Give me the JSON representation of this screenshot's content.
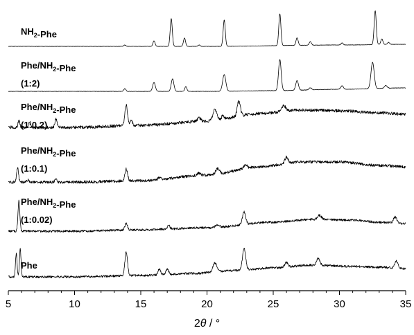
{
  "chart_data": {
    "type": "line",
    "title": "",
    "xlabel": "2θ / °",
    "ylabel": "",
    "xlim": [
      5,
      35
    ],
    "xticks": [
      5,
      10,
      15,
      20,
      25,
      30,
      35
    ],
    "y_axis_shown": false,
    "grid": false,
    "legend": "none (series labelled inline, top-left of each trace)",
    "series": [
      {
        "name": "NH2-Phe",
        "label_lines": [
          "NH2-Phe"
        ],
        "color": "#000000",
        "noise": 0.25,
        "background": [
          [
            5,
            0
          ],
          [
            10,
            0
          ],
          [
            20,
            0
          ],
          [
            30,
            2
          ],
          [
            35,
            3
          ]
        ],
        "peaks": [
          [
            13.8,
            2,
            0.08
          ],
          [
            16.0,
            8,
            0.08
          ],
          [
            17.3,
            40,
            0.08
          ],
          [
            18.3,
            12,
            0.08
          ],
          [
            19.4,
            2,
            0.08
          ],
          [
            21.3,
            38,
            0.08
          ],
          [
            25.5,
            46,
            0.08
          ],
          [
            26.8,
            11,
            0.08
          ],
          [
            27.8,
            5,
            0.08
          ],
          [
            30.2,
            3,
            0.08
          ],
          [
            32.7,
            49,
            0.08
          ],
          [
            33.2,
            8,
            0.08
          ],
          [
            33.7,
            3,
            0.08
          ]
        ]
      },
      {
        "name": "Phe/NH2-Phe (1:2)",
        "label_lines": [
          "Phe/NH2-Phe",
          "(1:2)"
        ],
        "color": "#000000",
        "noise": 0.3,
        "background": [
          [
            5,
            0
          ],
          [
            10,
            0
          ],
          [
            20,
            0
          ],
          [
            25,
            1
          ],
          [
            30,
            3
          ],
          [
            35,
            5
          ]
        ],
        "peaks": [
          [
            13.8,
            4,
            0.08
          ],
          [
            16.0,
            13,
            0.1
          ],
          [
            17.4,
            18,
            0.1
          ],
          [
            18.4,
            7,
            0.08
          ],
          [
            21.3,
            24,
            0.12
          ],
          [
            25.5,
            45,
            0.1
          ],
          [
            26.8,
            14,
            0.1
          ],
          [
            27.8,
            3,
            0.1
          ],
          [
            30.2,
            5,
            0.1
          ],
          [
            32.5,
            38,
            0.12
          ],
          [
            33.5,
            4,
            0.1
          ]
        ]
      },
      {
        "name": "Phe/NH2-Phe (1:0.2)",
        "label_lines": [
          "Phe/NH2-Phe",
          "(1:0.2)"
        ],
        "color": "#000000",
        "noise": 2.2,
        "background": [
          [
            5,
            0
          ],
          [
            10,
            0
          ],
          [
            15,
            3
          ],
          [
            20,
            9
          ],
          [
            24,
            20
          ],
          [
            27,
            25
          ],
          [
            30,
            24
          ],
          [
            33,
            21
          ],
          [
            35,
            19
          ]
        ],
        "peaks": [
          [
            5.8,
            10,
            0.07
          ],
          [
            6.6,
            8,
            0.08
          ],
          [
            8.6,
            12,
            0.08
          ],
          [
            13.9,
            30,
            0.1
          ],
          [
            14.3,
            8,
            0.08
          ],
          [
            19.4,
            5,
            0.12
          ],
          [
            20.6,
            16,
            0.15
          ],
          [
            21.2,
            6,
            0.1
          ],
          [
            22.4,
            22,
            0.12
          ],
          [
            25.8,
            8,
            0.15
          ]
        ]
      },
      {
        "name": "Phe/NH2-Phe (1:0.1)",
        "label_lines": [
          "Phe/NH2-Phe",
          "(1:0.1)"
        ],
        "color": "#000000",
        "noise": 2.0,
        "background": [
          [
            5,
            0
          ],
          [
            10,
            0
          ],
          [
            15,
            2
          ],
          [
            20,
            10
          ],
          [
            24,
            22
          ],
          [
            27,
            29
          ],
          [
            30,
            29
          ],
          [
            33,
            24
          ],
          [
            35,
            22
          ]
        ],
        "peaks": [
          [
            5.7,
            21,
            0.07
          ],
          [
            6.5,
            3,
            0.08
          ],
          [
            8.6,
            4,
            0.08
          ],
          [
            13.9,
            17,
            0.1
          ],
          [
            16.4,
            3,
            0.1
          ],
          [
            19.4,
            3,
            0.12
          ],
          [
            20.8,
            8,
            0.15
          ],
          [
            22.9,
            5,
            0.12
          ],
          [
            26.0,
            9,
            0.12
          ]
        ]
      },
      {
        "name": "Phe/NH2-Phe (1:0.02)",
        "label_lines": [
          "Phe/NH2-Phe",
          "(1:0.02)"
        ],
        "color": "#000000",
        "noise": 1.6,
        "background": [
          [
            5,
            0
          ],
          [
            10,
            0
          ],
          [
            15,
            2
          ],
          [
            20,
            5
          ],
          [
            25,
            13
          ],
          [
            28,
            17
          ],
          [
            31,
            16
          ],
          [
            33,
            13
          ],
          [
            35,
            11
          ]
        ],
        "peaks": [
          [
            5.8,
            44,
            0.07
          ],
          [
            13.9,
            9,
            0.1
          ],
          [
            17.1,
            5,
            0.1
          ],
          [
            20.8,
            4,
            0.15
          ],
          [
            22.8,
            18,
            0.12
          ],
          [
            28.5,
            6,
            0.15
          ],
          [
            34.2,
            9,
            0.12
          ]
        ]
      },
      {
        "name": "Phe",
        "label_lines": [
          "Phe"
        ],
        "color": "#000000",
        "noise": 1.6,
        "background": [
          [
            5,
            0
          ],
          [
            10,
            0
          ],
          [
            15,
            2
          ],
          [
            19,
            5
          ],
          [
            22,
            9
          ],
          [
            25,
            13
          ],
          [
            28,
            17
          ],
          [
            31,
            15
          ],
          [
            33,
            14
          ],
          [
            35,
            12
          ]
        ],
        "peaks": [
          [
            5.6,
            33,
            0.06
          ],
          [
            5.9,
            40,
            0.06
          ],
          [
            13.9,
            34,
            0.1
          ],
          [
            16.4,
            9,
            0.1
          ],
          [
            17.0,
            8,
            0.1
          ],
          [
            20.6,
            13,
            0.15
          ],
          [
            22.8,
            32,
            0.12
          ],
          [
            26.0,
            7,
            0.12
          ],
          [
            28.4,
            10,
            0.12
          ],
          [
            34.3,
            10,
            0.12
          ]
        ]
      }
    ]
  }
}
